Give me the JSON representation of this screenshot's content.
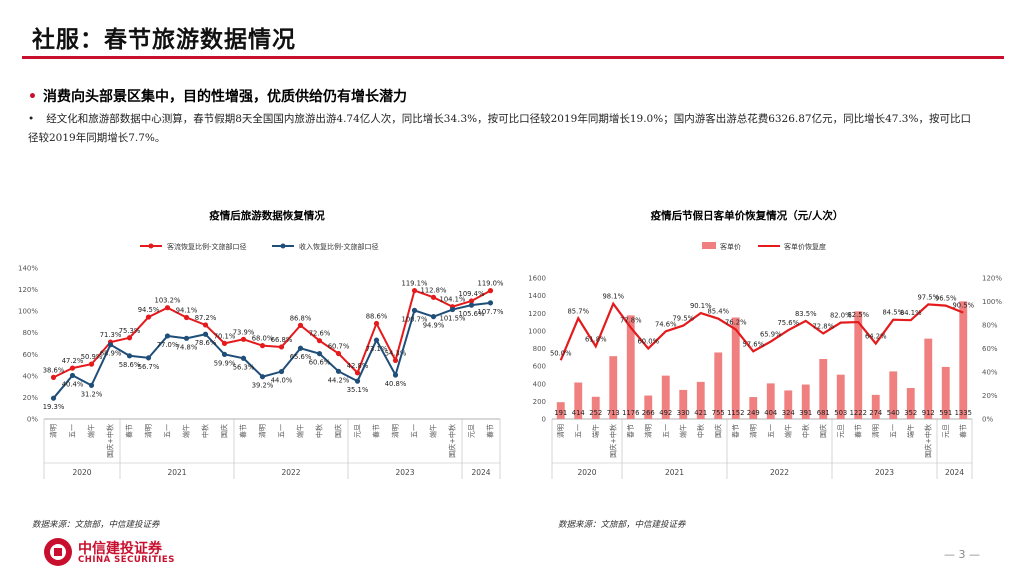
{
  "header": {
    "title": "社服：春节旅游数据情况"
  },
  "bullet": {
    "heading": "消费向头部景区集中，目的性增强，优质供给仍有增长潜力",
    "body": "经文化和旅游部数据中心测算，春节假期8天全国国内旅游出游4.74亿人次，同比增长34.3%，按可比口径较2019年同期增长19.0%；国内游客出游总花费6326.87亿元，同比增长47.3%，按可比口径较2019年同期增长7.7%。"
  },
  "footer": {
    "source_left": "数据来源：文旅部，中信建投证券",
    "source_right": "数据来源：文旅部，中信建投证券",
    "logo_cn": "中信建投证券",
    "logo_en": "CHINA SECURITIES",
    "page": "— 3 —"
  },
  "chart_data": [
    {
      "type": "line",
      "title": "疫情后旅游数据恢复情况",
      "categories": [
        "清明",
        "五一",
        "端午",
        "国庆+中秋",
        "春节",
        "清明",
        "五一",
        "端午",
        "中秋",
        "国庆",
        "春节",
        "清明",
        "五一",
        "端午",
        "中秋",
        "国庆",
        "元旦",
        "春节",
        "清明",
        "五一",
        "端午",
        "国庆+中秋",
        "元旦",
        "春节"
      ],
      "year_groups": [
        {
          "label": "2020",
          "count": 4
        },
        {
          "label": "2021",
          "count": 6
        },
        {
          "label": "2022",
          "count": 6
        },
        {
          "label": "2023",
          "count": 6
        },
        {
          "label": "2024",
          "count": 2
        }
      ],
      "y_ticks": [
        "0%",
        "20%",
        "40%",
        "60%",
        "80%",
        "100%",
        "120%",
        "140%"
      ],
      "ylim": [
        0,
        140
      ],
      "series": [
        {
          "name": "客流恢复比例-文旅部口径",
          "color": "#e41a1c",
          "values": [
            38.6,
            47.2,
            50.9,
            71.3,
            75.3,
            94.5,
            103.2,
            94.1,
            87.2,
            70.1,
            73.9,
            68.0,
            66.8,
            86.8,
            72.6,
            60.7,
            42.8,
            88.6,
            54.3,
            119.1,
            112.8,
            104.1,
            109.4,
            119.0
          ],
          "labels": [
            "38.6%",
            "47.2%",
            "50.9%",
            "71.3%",
            "75.3%",
            "94.5%",
            "103.2%",
            "94.1%",
            "87.2%",
            "70.1%",
            "73.9%",
            "68.0%",
            "66.8%",
            "86.8%",
            "72.6%",
            "60.7%",
            "42.8%",
            "88.6%",
            "54.3%",
            "119.1%",
            "112.8%",
            "104.1%",
            "109.4%",
            "119.0%"
          ]
        },
        {
          "name": "收入恢复比例-文旅部口径",
          "color": "#1f4e79",
          "values": [
            19.3,
            40.4,
            31.2,
            68.9,
            58.6,
            56.7,
            77.0,
            74.8,
            78.6,
            59.9,
            56.3,
            39.2,
            44.0,
            65.6,
            60.6,
            44.2,
            35.1,
            73.1,
            40.8,
            100.7,
            94.9,
            101.5,
            105.6,
            107.7
          ],
          "labels": [
            "19.3%",
            "40.4%",
            "31.2%",
            "68.9%",
            "58.6%",
            "56.7%",
            "77.0%",
            "74.8%",
            "78.6%",
            "59.9%",
            "56.3%",
            "39.2%",
            "44.0%",
            "65.6%",
            "60.6%",
            "44.2%",
            "35.1%",
            "73.1%",
            "40.8%",
            "100.7%",
            "94.9%",
            "101.5%",
            "105.6%",
            "107.7%"
          ]
        }
      ]
    },
    {
      "type": "bar+line",
      "title": "疫情后节假日客单价恢复情况（元/人次）",
      "categories": [
        "清明",
        "五一",
        "端午",
        "国庆+中秋",
        "春节",
        "清明",
        "五一",
        "端午",
        "中秋",
        "国庆",
        "春节",
        "清明",
        "五一",
        "端午",
        "中秋",
        "国庆",
        "元旦",
        "春节",
        "清明",
        "五一",
        "端午",
        "国庆+中秋",
        "元旦",
        "春节"
      ],
      "year_groups": [
        {
          "label": "2020",
          "count": 4
        },
        {
          "label": "2021",
          "count": 6
        },
        {
          "label": "2022",
          "count": 6
        },
        {
          "label": "2023",
          "count": 6
        },
        {
          "label": "2024",
          "count": 2
        }
      ],
      "y_left_ticks": [
        "0",
        "200",
        "400",
        "600",
        "800",
        "1000",
        "1200",
        "1400",
        "1600"
      ],
      "y_right_ticks": [
        "0%",
        "20%",
        "40%",
        "60%",
        "80%",
        "100%",
        "120%"
      ],
      "ylim_left": [
        0,
        1600
      ],
      "ylim_right": [
        0,
        120
      ],
      "series": [
        {
          "name": "客单价",
          "type": "bar",
          "color": "#f08080",
          "values": [
            191,
            414,
            252,
            713,
            1176,
            266,
            492,
            330,
            421,
            755,
            1152,
            249,
            404,
            324,
            391,
            681,
            503,
            1222,
            274,
            540,
            352,
            912,
            591,
            1335
          ]
        },
        {
          "name": "客单价恢复度",
          "type": "line",
          "color": "#e41a1c",
          "values": [
            50.0,
            85.7,
            61.8,
            98.1,
            77.8,
            60.0,
            74.6,
            79.5,
            90.1,
            85.4,
            76.2,
            57.6,
            65.9,
            75.6,
            83.5,
            72.8,
            82.0,
            82.5,
            64.2,
            84.5,
            84.1,
            97.5,
            96.5,
            90.5
          ],
          "labels": [
            "50.0%",
            "85.7%",
            "61.8%",
            "98.1%",
            "77.8%",
            "60.0%",
            "74.6%",
            "79.5%",
            "90.1%",
            "85.4%",
            "76.2%",
            "57.6%",
            "65.9%",
            "75.6%",
            "83.5%",
            "72.8%",
            "82.0%",
            "82.5%",
            "64.2%",
            "84.5%",
            "84.1%",
            "97.5%",
            "96.5%",
            "90.5%"
          ]
        }
      ]
    }
  ]
}
